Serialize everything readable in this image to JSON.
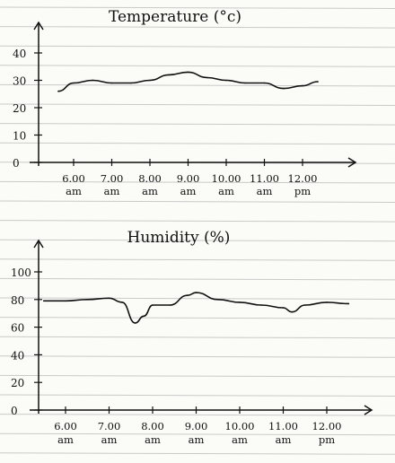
{
  "chart_data": [
    {
      "type": "line",
      "title": "Temperature (°c)",
      "ylim": [
        0,
        40
      ],
      "y_ticks": [
        "0",
        "10",
        "20",
        "30",
        "40"
      ],
      "x_ticks": [
        {
          "top": "6.00",
          "bottom": "am"
        },
        {
          "top": "7.00",
          "bottom": "am"
        },
        {
          "top": "8.00",
          "bottom": "am"
        },
        {
          "top": "9.00",
          "bottom": "am"
        },
        {
          "top": "10.00",
          "bottom": "am"
        },
        {
          "top": "11.00",
          "bottom": "am"
        },
        {
          "top": "12.00",
          "bottom": "pm"
        }
      ],
      "x": [
        5.6,
        6.0,
        6.5,
        7.0,
        7.5,
        8.0,
        8.5,
        9.0,
        9.5,
        10.0,
        10.5,
        11.0,
        11.5,
        12.0,
        12.4
      ],
      "values": [
        26,
        29,
        30,
        29,
        29,
        30,
        32,
        33,
        31,
        30,
        29,
        29,
        27,
        28,
        29.5
      ],
      "grid": true
    },
    {
      "type": "line",
      "title": "Humidity (%)",
      "ylim": [
        0,
        100
      ],
      "y_ticks": [
        "0",
        "20",
        "40",
        "60",
        "80",
        "100"
      ],
      "x_ticks": [
        {
          "top": "6.00",
          "bottom": "am"
        },
        {
          "top": "7.00",
          "bottom": "am"
        },
        {
          "top": "8.00",
          "bottom": "am"
        },
        {
          "top": "9.00",
          "bottom": "am"
        },
        {
          "top": "10.00",
          "bottom": "am"
        },
        {
          "top": "11.00",
          "bottom": "am"
        },
        {
          "top": "12.00",
          "bottom": "pm"
        }
      ],
      "x": [
        5.5,
        6.0,
        6.5,
        7.0,
        7.3,
        7.6,
        7.8,
        8.0,
        8.4,
        8.8,
        9.0,
        9.5,
        10.0,
        10.5,
        11.0,
        11.2,
        11.5,
        12.0,
        12.5
      ],
      "values": [
        79,
        79,
        80,
        81,
        78,
        63,
        68,
        76,
        76,
        83,
        85,
        80,
        78,
        76,
        74,
        71,
        76,
        78,
        77
      ],
      "grid": true
    }
  ]
}
